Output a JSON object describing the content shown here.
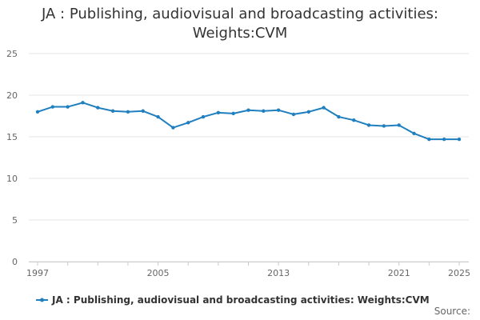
{
  "chart_data": {
    "type": "line",
    "title": "JA : Publishing, audiovisual and broadcasting activities: Weights:CVM",
    "title_lines": [
      "JA : Publishing, audiovisual and broadcasting activities:",
      "Weights:CVM"
    ],
    "xlabel": "",
    "ylabel": "",
    "x": [
      1997,
      1998,
      1999,
      2000,
      2001,
      2002,
      2003,
      2004,
      2005,
      2006,
      2007,
      2008,
      2009,
      2010,
      2011,
      2012,
      2013,
      2014,
      2015,
      2016,
      2017,
      2018,
      2019,
      2020,
      2021,
      2022,
      2023,
      2024,
      2025
    ],
    "xlim": [
      1997,
      2025
    ],
    "x_ticks": [
      1997,
      2005,
      2013,
      2021,
      2025
    ],
    "y_ticks": [
      0,
      5,
      10,
      15,
      20,
      25
    ],
    "ylim": [
      0,
      25
    ],
    "grid": true,
    "legend_position": "bottom",
    "series": [
      {
        "name": "JA : Publishing, audiovisual and broadcasting activities: Weights:CVM",
        "color": "#1f7fbf",
        "values": [
          18.0,
          18.6,
          18.6,
          19.1,
          18.5,
          18.1,
          18.0,
          18.1,
          17.4,
          16.1,
          16.7,
          17.4,
          17.9,
          17.8,
          18.2,
          18.1,
          18.2,
          17.7,
          18.0,
          18.5,
          17.4,
          17.0,
          16.4,
          16.3,
          16.4,
          15.4,
          14.7,
          14.7,
          14.7
        ]
      }
    ],
    "source_label": "Source:"
  }
}
